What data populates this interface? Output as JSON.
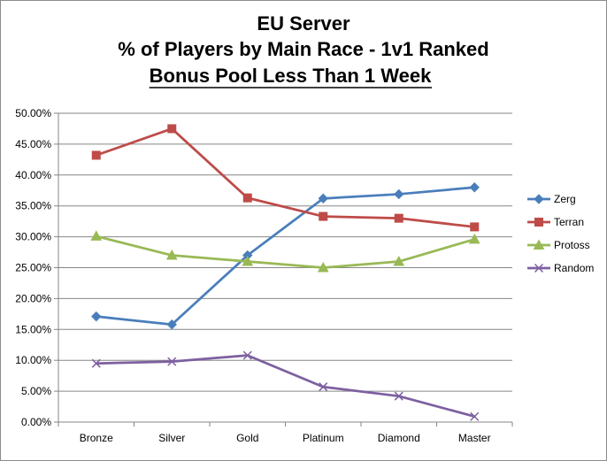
{
  "chart_data": {
    "type": "line",
    "title": [
      "EU Server",
      "% of Players by Main Race - 1v1 Ranked",
      "Bonus Pool Less Than 1 Week"
    ],
    "title_underlined_line": 3,
    "xlabel": "",
    "ylabel": "",
    "categories": [
      "Bronze",
      "Silver",
      "Gold",
      "Platinum",
      "Diamond",
      "Master"
    ],
    "ylim": [
      0,
      0.5
    ],
    "y_ticks": [
      "0.00%",
      "5.00%",
      "10.00%",
      "15.00%",
      "20.00%",
      "25.00%",
      "30.00%",
      "35.00%",
      "40.00%",
      "45.00%",
      "50.00%"
    ],
    "grid": true,
    "legend_position": "right",
    "series": [
      {
        "name": "Zerg",
        "color": "#4a7ebb",
        "marker": "diamond",
        "values": [
          0.171,
          0.158,
          0.27,
          0.362,
          0.369,
          0.38
        ]
      },
      {
        "name": "Terran",
        "color": "#be4b48",
        "marker": "square",
        "values": [
          0.432,
          0.475,
          0.363,
          0.333,
          0.33,
          0.316
        ]
      },
      {
        "name": "Protoss",
        "color": "#98b954",
        "marker": "triangle",
        "values": [
          0.301,
          0.27,
          0.26,
          0.25,
          0.26,
          0.296
        ]
      },
      {
        "name": "Random",
        "color": "#7d60a0",
        "marker": "x",
        "values": [
          0.095,
          0.098,
          0.108,
          0.057,
          0.042,
          0.009
        ]
      }
    ]
  }
}
